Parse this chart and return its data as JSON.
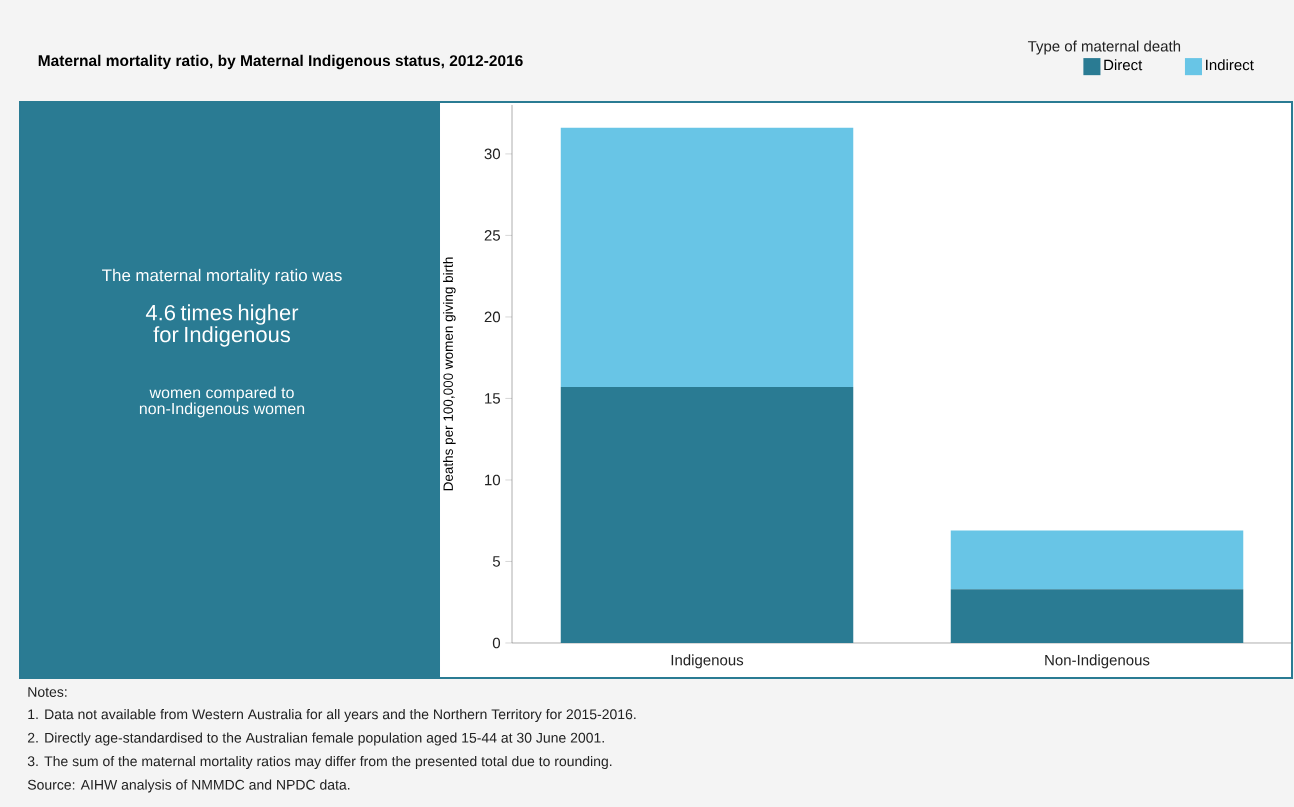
{
  "chart_data": {
    "type": "bar",
    "title": "Maternal mortality ratio, by Maternal Indigenous status, 2012-2016",
    "categories": [
      "Indigenous",
      "Non-Indigenous"
    ],
    "ylabel": "Deaths per 100,000 women giving birth",
    "legend_title": "Type of maternal death",
    "stacked": true,
    "series": [
      {
        "name": "Direct",
        "color": "#2a7b93",
        "values": [
          15.7,
          3.3
        ]
      },
      {
        "name": "Indirect",
        "color": "#68c5e6",
        "values": [
          15.9,
          3.6
        ]
      }
    ],
    "ylim": [
      0,
      33
    ],
    "yticks": [
      0,
      5,
      10,
      15,
      20,
      25,
      30
    ],
    "grid": false,
    "legend": "top right",
    "annotations": [
      "The maternal mortality ratio was",
      "4.6 times higher for Indigenous",
      "women compared to non-Indigenous women",
      "Notes:",
      "1.  Data not available from Western Australia for all years and the Northern Territory for 2015-2016.",
      "2.  Directly age-standardised to the Australian female population aged 15-44 at 30 June 2001.",
      "3.  The sum of the maternal mortality ratios may differ from the presented total due to rounding.",
      "Source: AIHW analysis of NMMDC and NPDC data."
    ]
  }
}
